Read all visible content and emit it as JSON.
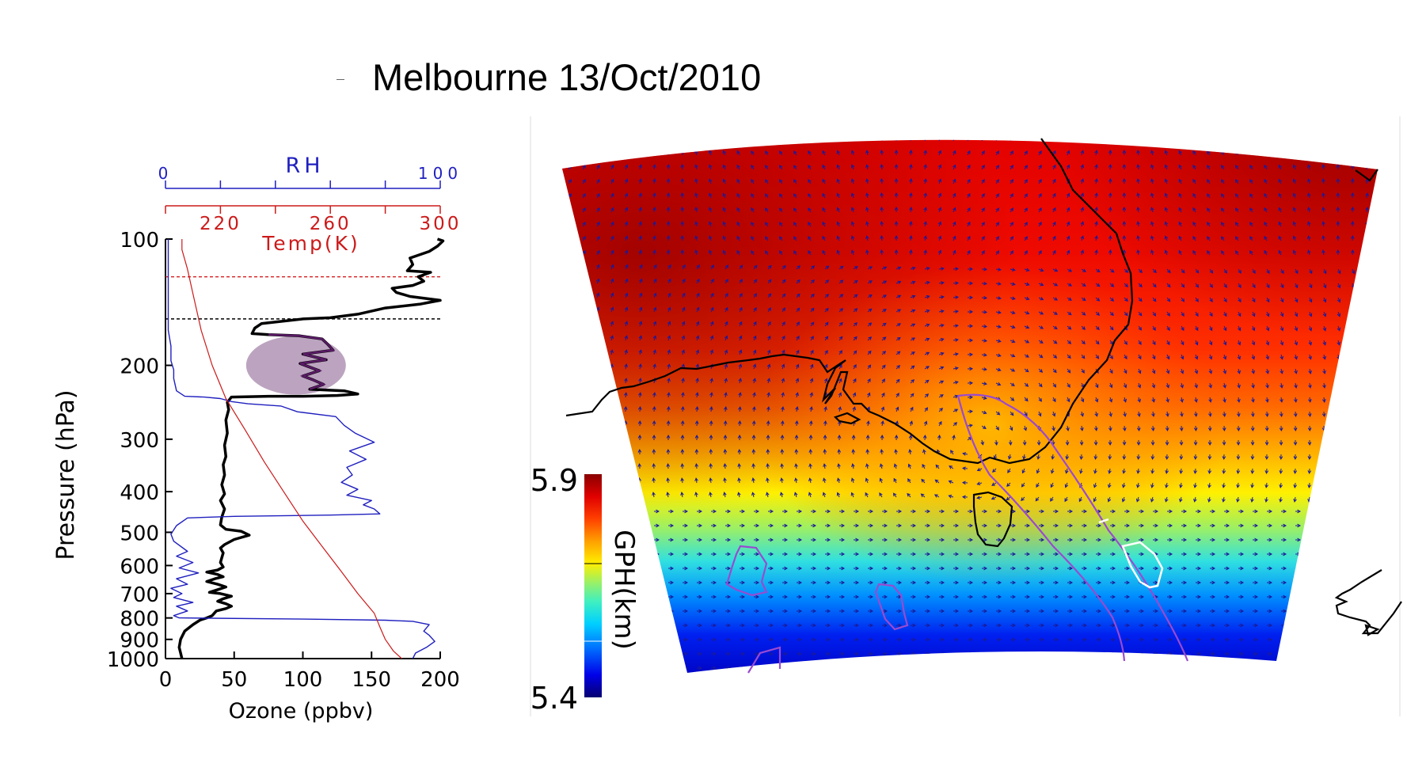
{
  "title": "Melbourne 13/Oct/2010",
  "chart_data": [
    {
      "type": "line",
      "yscale": "log",
      "ylabel": "Pressure (hPa)",
      "ylim": [
        1000,
        100
      ],
      "yticks": [
        "100",
        "200",
        "300",
        "400",
        "500",
        "600",
        "700",
        "800",
        "900",
        "1000"
      ],
      "axes": {
        "ozone": {
          "label": "Ozone (ppbv)",
          "range": [
            0,
            200
          ],
          "ticks": [
            "0",
            "50",
            "100",
            "150",
            "200"
          ],
          "color": "#000000"
        },
        "rh": {
          "label": "RH",
          "range": [
            0,
            100
          ],
          "ticks": [
            "0",
            "100"
          ],
          "color": "#1f1fbf"
        },
        "temp": {
          "label": "Temp(K)",
          "range": [
            200,
            300
          ],
          "ticks": [
            "220",
            "260",
            "300"
          ],
          "color": "#cc1a1a"
        }
      },
      "series": [
        {
          "name": "Ozone (ppbv)",
          "color": "#000000",
          "points": [
            [
              12,
              1000
            ],
            [
              11,
              970
            ],
            [
              10,
              940
            ],
            [
              11,
              900
            ],
            [
              14,
              860
            ],
            [
              20,
              830
            ],
            [
              25,
              810
            ],
            [
              30,
              800
            ],
            [
              34,
              790
            ],
            [
              37,
              770
            ],
            [
              44,
              760
            ],
            [
              48,
              750
            ],
            [
              44,
              740
            ],
            [
              38,
              730
            ],
            [
              42,
              720
            ],
            [
              48,
              710
            ],
            [
              40,
              700
            ],
            [
              32,
              695
            ],
            [
              38,
              685
            ],
            [
              44,
              675
            ],
            [
              38,
              665
            ],
            [
              30,
              655
            ],
            [
              36,
              645
            ],
            [
              42,
              638
            ],
            [
              38,
              630
            ],
            [
              30,
              622
            ],
            [
              38,
              615
            ],
            [
              42,
              605
            ],
            [
              40,
              590
            ],
            [
              41,
              575
            ],
            [
              42,
              560
            ],
            [
              40,
              545
            ],
            [
              43,
              535
            ],
            [
              50,
              520
            ],
            [
              61,
              508
            ],
            [
              55,
              497
            ],
            [
              44,
              492
            ],
            [
              40,
              480
            ],
            [
              41,
              460
            ],
            [
              43,
              440
            ],
            [
              40,
              420
            ],
            [
              43,
              405
            ],
            [
              41,
              385
            ],
            [
              43,
              365
            ],
            [
              42,
              345
            ],
            [
              44,
              330
            ],
            [
              43,
              310
            ],
            [
              45,
              290
            ],
            [
              44,
              270
            ],
            [
              46,
              255
            ],
            [
              45,
              245
            ],
            [
              48,
              238
            ],
            [
              75,
              237
            ],
            [
              100,
              237
            ],
            [
              125,
              236
            ],
            [
              140,
              234
            ],
            [
              130,
              230
            ],
            [
              105,
              228
            ],
            [
              115,
              222
            ],
            [
              108,
              217
            ],
            [
              100,
              212
            ],
            [
              112,
              206
            ],
            [
              98,
              198
            ],
            [
              117,
              194
            ],
            [
              100,
              188
            ],
            [
              122,
              184
            ],
            [
              118,
              178
            ],
            [
              114,
              173
            ],
            [
              97,
              170
            ],
            [
              75,
              169
            ],
            [
              63,
              168
            ],
            [
              65,
              163
            ],
            [
              70,
              159
            ],
            [
              100,
              155
            ],
            [
              120,
              154
            ],
            [
              140,
              151
            ],
            [
              160,
              146
            ],
            [
              185,
              143
            ],
            [
              200,
              140
            ],
            [
              178,
              137
            ],
            [
              168,
              134
            ],
            [
              165,
              131
            ],
            [
              180,
              129
            ],
            [
              188,
              126
            ],
            [
              184,
              123
            ],
            [
              193,
              120
            ],
            [
              176,
              119
            ],
            [
              180,
              115
            ],
            [
              178,
              111
            ],
            [
              192,
              107
            ],
            [
              198,
              104
            ],
            [
              202,
              101
            ],
            [
              198,
              100
            ]
          ]
        },
        {
          "name": "RH",
          "color": "#1f1fbf",
          "points": [
            [
              90,
              1000
            ],
            [
              91,
              970
            ],
            [
              95,
              940
            ],
            [
              98,
              910
            ],
            [
              96,
              880
            ],
            [
              94,
              860
            ],
            [
              96,
              830
            ],
            [
              90,
              815
            ],
            [
              80,
              810
            ],
            [
              50,
              805
            ],
            [
              5,
              800
            ],
            [
              3,
              790
            ],
            [
              8,
              770
            ],
            [
              4,
              750
            ],
            [
              10,
              735
            ],
            [
              3,
              715
            ],
            [
              6,
              700
            ],
            [
              2,
              680
            ],
            [
              8,
              665
            ],
            [
              4,
              645
            ],
            [
              12,
              625
            ],
            [
              5,
              608
            ],
            [
              10,
              590
            ],
            [
              4,
              570
            ],
            [
              8,
              555
            ],
            [
              3,
              525
            ],
            [
              2,
              505
            ],
            [
              4,
              482
            ],
            [
              8,
              462
            ],
            [
              25,
              458
            ],
            [
              60,
              455
            ],
            [
              78,
              452
            ],
            [
              76,
              440
            ],
            [
              72,
              430
            ],
            [
              75,
              420
            ],
            [
              66,
              408
            ],
            [
              70,
              395
            ],
            [
              64,
              380
            ],
            [
              68,
              365
            ],
            [
              66,
              350
            ],
            [
              73,
              335
            ],
            [
              67,
              320
            ],
            [
              76,
              305
            ],
            [
              69,
              290
            ],
            [
              65,
              278
            ],
            [
              62,
              265
            ],
            [
              48,
              258
            ],
            [
              42,
              250
            ],
            [
              30,
              247
            ],
            [
              24,
              244
            ],
            [
              20,
              240
            ],
            [
              14,
              238
            ],
            [
              7,
              237
            ],
            [
              4,
              230
            ],
            [
              3,
              215
            ],
            [
              3,
              205
            ],
            [
              2,
              195
            ],
            [
              2,
              180
            ],
            [
              1,
              165
            ],
            [
              1,
              150
            ],
            [
              1,
              135
            ],
            [
              1,
              120
            ],
            [
              1,
              108
            ],
            [
              1,
              100
            ]
          ]
        },
        {
          "name": "Temp(K)",
          "color": "#cc1a1a",
          "points": [
            [
              286,
              1000
            ],
            [
              283,
              960
            ],
            [
              280,
              900
            ],
            [
              278,
              840
            ],
            [
              276,
              780
            ],
            [
              270,
              700
            ],
            [
              264,
              620
            ],
            [
              257,
              540
            ],
            [
              250,
              470
            ],
            [
              243,
              400
            ],
            [
              236,
              340
            ],
            [
              229,
              285
            ],
            [
              222,
              240
            ],
            [
              217,
              200
            ],
            [
              213,
              165
            ],
            [
              210,
              135
            ],
            [
              208,
              118
            ],
            [
              206,
              106
            ],
            [
              206,
              100
            ]
          ]
        }
      ],
      "reference_lines": [
        {
          "pressure": 123,
          "color": "#d62020"
        },
        {
          "pressure": 155,
          "color": "#000000"
        }
      ],
      "highlight": {
        "center": [
          95,
          200
        ],
        "color": "#7a4a82"
      }
    },
    {
      "type": "heatmap",
      "colorbar": {
        "label": "GPH(km)",
        "min": "5.9",
        "max": "5.4",
        "range": [
          5.4,
          5.9
        ]
      },
      "colormap": [
        "#070070",
        "#0000e8",
        "#0060ff",
        "#00d0ff",
        "#40f0c0",
        "#a0f060",
        "#ffef00",
        "#ffa000",
        "#ff4000",
        "#e00000",
        "#8a0000"
      ],
      "overlays": [
        "wind-vectors",
        "coastline",
        "pv-contours",
        "white-contour"
      ]
    }
  ]
}
